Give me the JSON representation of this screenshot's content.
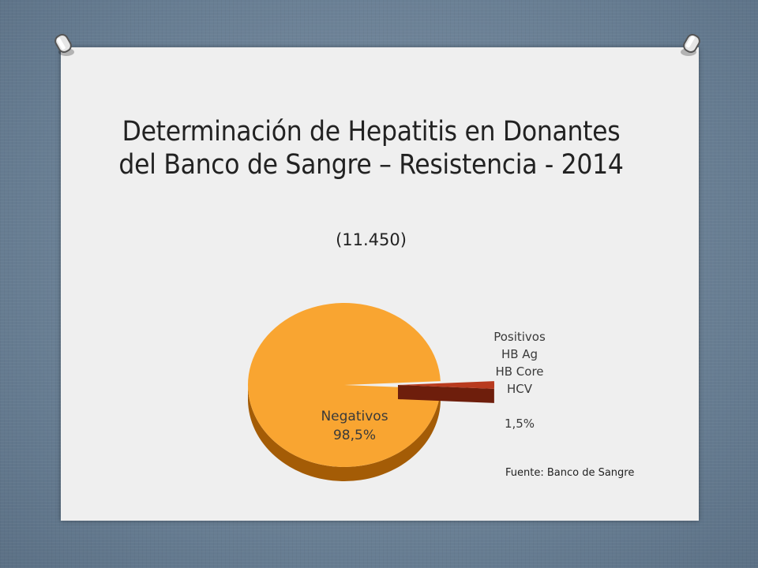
{
  "title": "Determinación de Hepatitis en Donantes del Banco de Sangre – Resistencia - 2014",
  "subtitle": "(11.450)",
  "source": "Fuente: Banco de Sangre",
  "colors": {
    "negativos_top": "#f9a531",
    "negativos_side": "#a45c06",
    "positivos_top": "#b83a1e",
    "positivos_side": "#6e1e0c"
  },
  "chart_data": {
    "type": "pie",
    "title": "Determinación de Hepatitis en Donantes del Banco de Sangre – Resistencia - 2014",
    "subtitle": "(11.450)",
    "slices": [
      {
        "label": "Negativos",
        "value": 98.5,
        "value_label": "98,5%",
        "lines": [
          "Negativos"
        ]
      },
      {
        "label": "Positivos",
        "value": 1.5,
        "value_label": "1,5%",
        "lines": [
          "Positivos",
          "HB Ag",
          "HB Core",
          "HCV"
        ]
      }
    ]
  }
}
